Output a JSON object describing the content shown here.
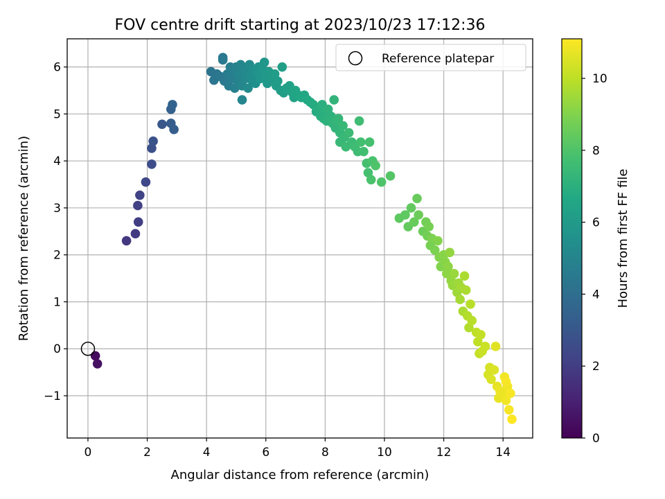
{
  "chart_data": {
    "type": "scatter",
    "title": "FOV centre drift starting at 2023/10/23 17:12:36",
    "xlabel": "Angular distance from reference (arcmin)",
    "ylabel": "Rotation from reference (arcmin)",
    "colorbar_label": "Hours from first FF file",
    "xlim": [
      -0.7,
      15.0
    ],
    "ylim": [
      -1.9,
      6.6
    ],
    "clim": [
      0,
      11.1
    ],
    "xticks": [
      "0",
      "2",
      "4",
      "6",
      "8",
      "10",
      "12",
      "14"
    ],
    "xtick_values": [
      0,
      2,
      4,
      6,
      8,
      10,
      12,
      14
    ],
    "yticks": [
      "−1",
      "0",
      "1",
      "2",
      "3",
      "4",
      "5",
      "6"
    ],
    "ytick_values": [
      -1,
      0,
      1,
      2,
      3,
      4,
      5,
      6
    ],
    "cticks": [
      "0",
      "2",
      "4",
      "6",
      "8",
      "10"
    ],
    "ctick_values": [
      0,
      2,
      4,
      6,
      8,
      10
    ],
    "grid": true,
    "colormap": "viridis",
    "legend": {
      "location": "upper right",
      "entries": [
        {
          "label": "Reference platepar",
          "marker": "open-circle"
        }
      ]
    },
    "reference_point": {
      "x": 0,
      "y": 0
    },
    "points": [
      [
        0.25,
        -0.15,
        0.3
      ],
      [
        0.32,
        -0.32,
        0.5
      ],
      [
        1.3,
        2.3,
        1.8
      ],
      [
        1.6,
        2.45,
        1.9
      ],
      [
        1.7,
        2.7,
        2.0
      ],
      [
        1.68,
        3.05,
        2.1
      ],
      [
        1.75,
        3.27,
        2.2
      ],
      [
        1.95,
        3.55,
        2.4
      ],
      [
        2.15,
        3.93,
        2.6
      ],
      [
        2.15,
        4.27,
        2.7
      ],
      [
        2.2,
        4.42,
        2.8
      ],
      [
        2.5,
        4.78,
        3.0
      ],
      [
        2.8,
        4.8,
        3.2
      ],
      [
        2.9,
        4.67,
        3.3
      ],
      [
        2.8,
        5.1,
        3.4
      ],
      [
        2.85,
        5.2,
        3.5
      ],
      [
        4.15,
        5.9,
        4.2
      ],
      [
        4.25,
        5.72,
        4.3
      ],
      [
        4.35,
        5.85,
        4.3
      ],
      [
        4.45,
        5.8,
        4.4
      ],
      [
        4.55,
        6.2,
        4.4
      ],
      [
        4.55,
        6.15,
        4.5
      ],
      [
        4.6,
        5.7,
        4.5
      ],
      [
        4.7,
        5.85,
        4.6
      ],
      [
        4.75,
        5.6,
        4.6
      ],
      [
        4.8,
        6.0,
        4.7
      ],
      [
        4.85,
        5.75,
        4.7
      ],
      [
        4.9,
        5.9,
        4.8
      ],
      [
        4.95,
        5.55,
        4.8
      ],
      [
        5.0,
        6.0,
        4.9
      ],
      [
        5.05,
        5.7,
        4.9
      ],
      [
        5.1,
        5.85,
        5.0
      ],
      [
        5.15,
        6.05,
        5.0
      ],
      [
        5.2,
        5.6,
        5.1
      ],
      [
        5.2,
        5.3,
        5.1
      ],
      [
        5.25,
        5.95,
        5.1
      ],
      [
        5.3,
        5.75,
        5.2
      ],
      [
        5.35,
        5.9,
        5.2
      ],
      [
        5.4,
        5.55,
        5.3
      ],
      [
        5.45,
        6.05,
        5.3
      ],
      [
        5.5,
        5.8,
        5.4
      ],
      [
        5.55,
        5.7,
        5.4
      ],
      [
        5.6,
        5.95,
        5.5
      ],
      [
        5.65,
        5.65,
        5.5
      ],
      [
        5.7,
        5.85,
        5.6
      ],
      [
        5.75,
        6.0,
        5.6
      ],
      [
        5.8,
        5.75,
        5.7
      ],
      [
        5.85,
        5.9,
        5.7
      ],
      [
        5.9,
        5.95,
        5.8
      ],
      [
        5.95,
        6.1,
        5.8
      ],
      [
        6.0,
        5.8,
        5.9
      ],
      [
        6.05,
        5.65,
        5.9
      ],
      [
        6.1,
        5.9,
        6.0
      ],
      [
        6.2,
        5.75,
        6.0
      ],
      [
        6.3,
        5.85,
        6.1
      ],
      [
        6.35,
        5.6,
        6.1
      ],
      [
        6.4,
        5.7,
        6.1
      ],
      [
        6.5,
        5.5,
        6.2
      ],
      [
        6.55,
        6.0,
        6.2
      ],
      [
        6.6,
        5.45,
        6.2
      ],
      [
        6.7,
        5.55,
        6.3
      ],
      [
        6.8,
        5.6,
        6.3
      ],
      [
        6.9,
        5.45,
        6.4
      ],
      [
        6.95,
        5.35,
        6.4
      ],
      [
        7.0,
        5.5,
        6.5
      ],
      [
        7.1,
        5.4,
        6.5
      ],
      [
        7.2,
        5.35,
        6.6
      ],
      [
        7.3,
        5.4,
        6.6
      ],
      [
        7.4,
        5.3,
        6.7
      ],
      [
        7.5,
        5.25,
        6.7
      ],
      [
        7.6,
        5.2,
        6.8
      ],
      [
        7.7,
        5.05,
        6.8
      ],
      [
        7.8,
        5.1,
        6.9
      ],
      [
        7.85,
        4.95,
        6.9
      ],
      [
        7.9,
        5.2,
        7.0
      ],
      [
        7.95,
        4.9,
        7.0
      ],
      [
        8.0,
        5.05,
        7.0
      ],
      [
        8.05,
        4.85,
        7.1
      ],
      [
        8.1,
        5.1,
        7.1
      ],
      [
        8.2,
        4.95,
        7.1
      ],
      [
        8.25,
        4.8,
        7.2
      ],
      [
        8.3,
        5.3,
        7.2
      ],
      [
        8.35,
        4.7,
        7.2
      ],
      [
        8.4,
        4.85,
        7.3
      ],
      [
        8.45,
        4.9,
        7.3
      ],
      [
        8.5,
        4.6,
        7.3
      ],
      [
        8.5,
        4.4,
        7.4
      ],
      [
        8.6,
        4.75,
        7.4
      ],
      [
        8.65,
        4.5,
        7.4
      ],
      [
        8.7,
        4.3,
        7.5
      ],
      [
        8.8,
        4.6,
        7.5
      ],
      [
        8.9,
        4.4,
        7.5
      ],
      [
        9.0,
        4.3,
        7.6
      ],
      [
        9.1,
        4.2,
        7.6
      ],
      [
        9.15,
        4.85,
        7.6
      ],
      [
        9.2,
        4.4,
        7.7
      ],
      [
        9.3,
        4.2,
        7.7
      ],
      [
        9.4,
        3.95,
        7.8
      ],
      [
        9.45,
        3.75,
        7.8
      ],
      [
        9.5,
        4.4,
        7.8
      ],
      [
        9.55,
        3.6,
        7.9
      ],
      [
        9.6,
        4.0,
        7.9
      ],
      [
        9.7,
        3.9,
        8.0
      ],
      [
        9.9,
        3.55,
        8.0
      ],
      [
        10.2,
        3.68,
        8.1
      ],
      [
        10.5,
        2.78,
        8.3
      ],
      [
        10.7,
        2.85,
        8.3
      ],
      [
        10.8,
        2.6,
        8.4
      ],
      [
        10.9,
        3.0,
        8.4
      ],
      [
        11.0,
        2.7,
        8.5
      ],
      [
        11.1,
        3.2,
        8.5
      ],
      [
        11.15,
        2.85,
        8.6
      ],
      [
        11.3,
        2.5,
        8.6
      ],
      [
        11.4,
        2.7,
        8.7
      ],
      [
        11.45,
        2.4,
        8.7
      ],
      [
        11.5,
        2.6,
        8.8
      ],
      [
        11.55,
        2.2,
        8.8
      ],
      [
        11.6,
        2.35,
        8.9
      ],
      [
        11.7,
        2.1,
        8.9
      ],
      [
        11.8,
        2.3,
        9.0
      ],
      [
        11.85,
        1.95,
        9.0
      ],
      [
        11.9,
        1.75,
        9.0
      ],
      [
        12.0,
        2.0,
        9.1
      ],
      [
        12.05,
        1.85,
        9.1
      ],
      [
        12.1,
        1.6,
        9.2
      ],
      [
        12.15,
        1.75,
        9.2
      ],
      [
        12.2,
        2.05,
        9.3
      ],
      [
        12.25,
        1.45,
        9.3
      ],
      [
        12.3,
        1.35,
        9.4
      ],
      [
        12.35,
        1.6,
        9.4
      ],
      [
        12.45,
        1.2,
        9.5
      ],
      [
        12.5,
        1.4,
        9.5
      ],
      [
        12.55,
        1.05,
        9.6
      ],
      [
        12.6,
        1.3,
        9.6
      ],
      [
        12.65,
        0.8,
        9.7
      ],
      [
        12.7,
        1.55,
        9.7
      ],
      [
        12.75,
        1.25,
        9.7
      ],
      [
        12.8,
        0.7,
        9.8
      ],
      [
        12.85,
        0.45,
        9.8
      ],
      [
        12.9,
        0.95,
        9.9
      ],
      [
        12.95,
        0.6,
        9.9
      ],
      [
        13.1,
        0.35,
        10.0
      ],
      [
        13.15,
        0.15,
        10.0
      ],
      [
        13.2,
        -0.1,
        10.1
      ],
      [
        13.25,
        0.3,
        10.1
      ],
      [
        13.3,
        -0.05,
        10.2
      ],
      [
        13.4,
        0.05,
        10.2
      ],
      [
        13.5,
        -0.55,
        10.4
      ],
      [
        13.55,
        -0.4,
        10.4
      ],
      [
        13.6,
        -0.65,
        10.5
      ],
      [
        13.7,
        -0.45,
        10.5
      ],
      [
        13.75,
        0.05,
        10.6
      ],
      [
        13.8,
        -0.8,
        10.7
      ],
      [
        13.85,
        -1.05,
        10.7
      ],
      [
        13.9,
        -0.9,
        10.8
      ],
      [
        14.0,
        -0.95,
        10.8
      ],
      [
        14.05,
        -0.6,
        10.9
      ],
      [
        14.1,
        -1.1,
        10.9
      ],
      [
        14.15,
        -0.8,
        10.9
      ],
      [
        14.2,
        -1.3,
        11.0
      ],
      [
        14.25,
        -0.95,
        11.0
      ],
      [
        14.3,
        -1.5,
        11.1
      ],
      [
        14.1,
        -0.7,
        11.0
      ]
    ]
  }
}
